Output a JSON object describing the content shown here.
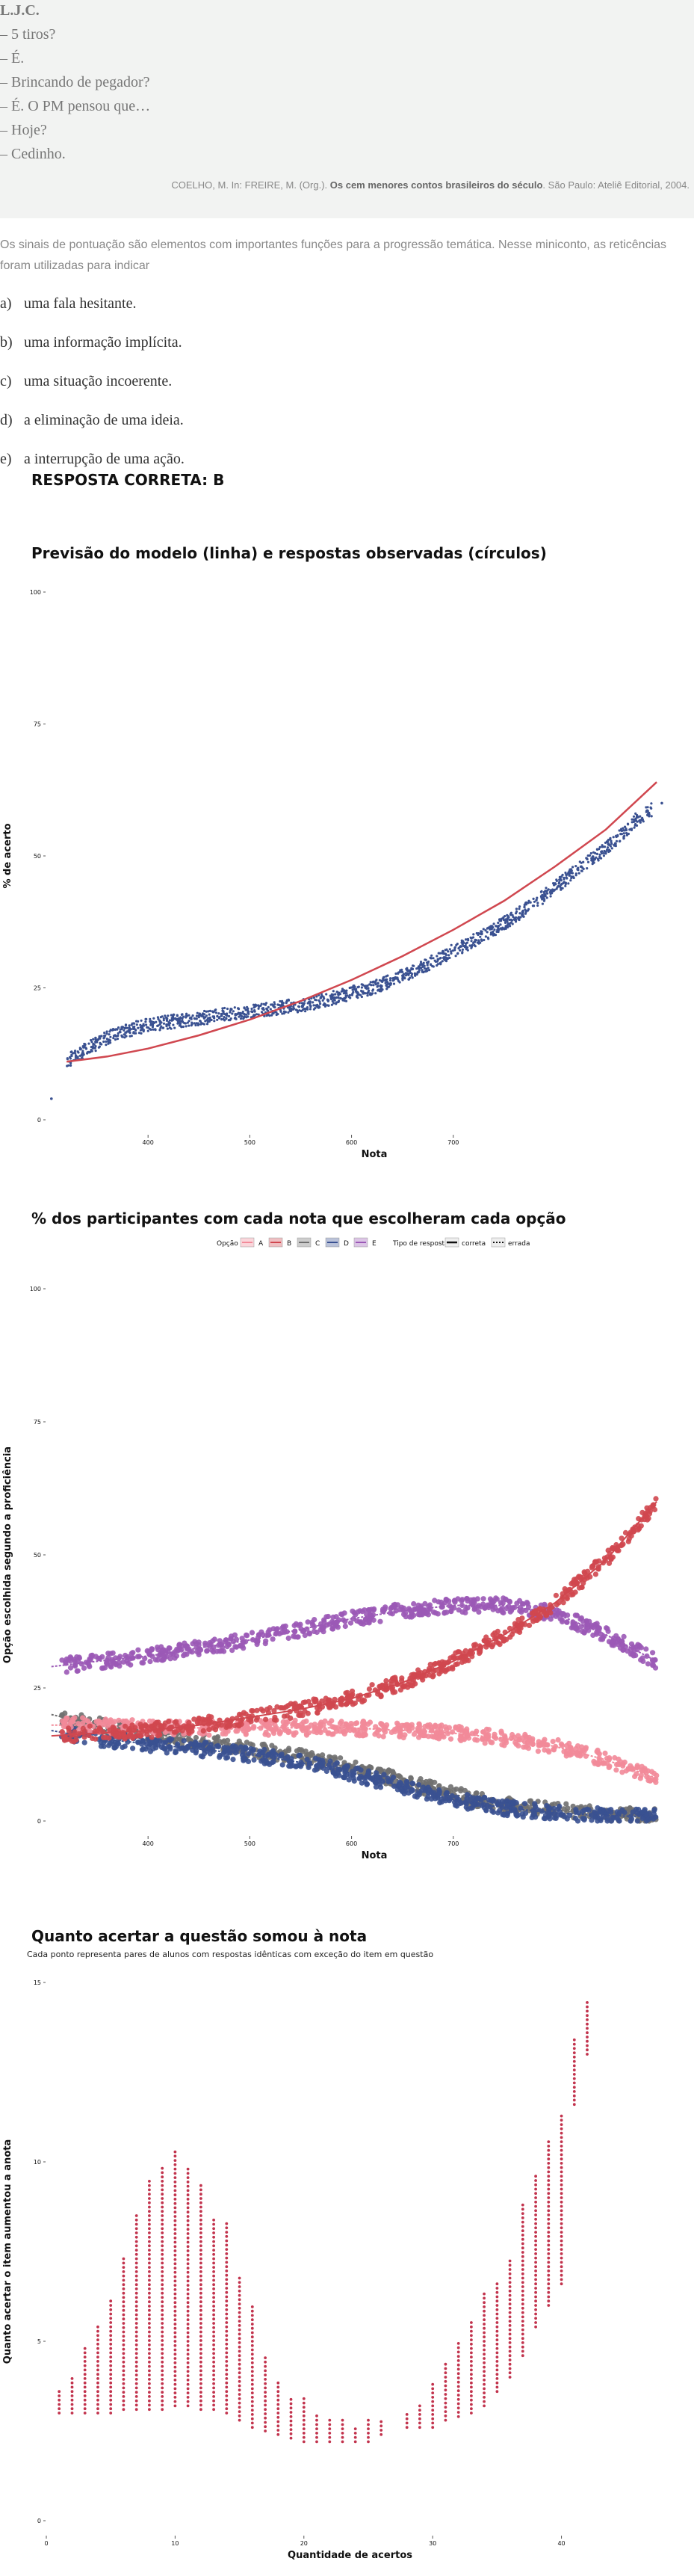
{
  "quote": {
    "lines": [
      "L.J.C.",
      "– 5 tiros?",
      "– É.",
      "– Brincando de pegador?",
      "– É. O PM pensou que…",
      "– Hoje?",
      "– Cedinho."
    ],
    "citation_prefix": "COELHO, M. In: FREIRE, M. (Org.).",
    "citation_book": "Os cem menores contos brasileiros do século",
    "citation_suffix": ". São Paulo: Ateliê Editorial, 2004."
  },
  "question": {
    "prompt": "Os sinais de pontuação são elementos com importantes funções para a progressão temática. Nesse miniconto, as reticências foram utilizadas para indicar",
    "options": [
      {
        "letter": "a)",
        "text": "uma fala hesitante."
      },
      {
        "letter": "b)",
        "text": "uma informação implícita."
      },
      {
        "letter": "c)",
        "text": "uma situação incoerente."
      },
      {
        "letter": "d)",
        "text": "a eliminação de uma ideia."
      },
      {
        "letter": "e)",
        "text": "a interrupção de uma ação."
      }
    ],
    "answer": "RESPOSTA CORRETA: B"
  },
  "chart_data": [
    {
      "type": "scatter",
      "title": "Previsão do modelo (linha) e respostas observadas (círculos)",
      "xlabel": "Nota",
      "ylabel": "% de acerto",
      "xlim": [
        300,
        930
      ],
      "ylim": [
        0,
        100
      ],
      "xticks": [
        400,
        500,
        600,
        700
      ],
      "yticks": [
        0,
        25,
        50,
        75,
        100
      ],
      "grid": false,
      "series": [
        {
          "mark": "points",
          "color": "#3a5191",
          "x": [
            305,
            320,
            340,
            360,
            380,
            400,
            420,
            440,
            460,
            480,
            500,
            520,
            540,
            560,
            580,
            600,
            620,
            640,
            660,
            680,
            700,
            720,
            740,
            760,
            780,
            800,
            820,
            840,
            860,
            880,
            905
          ],
          "y": [
            4,
            11,
            13.5,
            15.5,
            17,
            18,
            18.5,
            19,
            19.5,
            20,
            20.5,
            21,
            21.5,
            22,
            23,
            24,
            25,
            26.5,
            28,
            30,
            32,
            34,
            36,
            38.5,
            41,
            44,
            47,
            50,
            53,
            57,
            60
          ]
        },
        {
          "mark": "line",
          "color": "#d0474f",
          "x": [
            320,
            360,
            400,
            450,
            500,
            550,
            600,
            650,
            700,
            750,
            800,
            850,
            900
          ],
          "y": [
            11,
            12,
            13.5,
            16,
            19,
            22.5,
            26.5,
            31,
            36,
            41.5,
            48,
            55,
            64
          ]
        }
      ]
    },
    {
      "type": "line",
      "title": "% dos participantes com cada nota que escolheram cada opção",
      "xlabel": "Nota",
      "ylabel": "Opção escolhida segundo a proficiência",
      "legend_option_label": "Opção",
      "legend_type_label": "Tipo de resposta",
      "legend_type_entries": [
        "correta",
        "errada"
      ],
      "legend_placement": "top",
      "xlim": [
        300,
        930
      ],
      "ylim": [
        0,
        100
      ],
      "xticks": [
        400,
        500,
        600,
        700
      ],
      "yticks": [
        0,
        25,
        50,
        75,
        100
      ],
      "grid": false,
      "x": [
        305,
        350,
        400,
        450,
        500,
        550,
        600,
        650,
        700,
        750,
        800,
        850,
        900
      ],
      "series": [
        {
          "name": "A",
          "color": "#f28a99",
          "values": [
            18,
            18,
            17.5,
            17.5,
            17.5,
            17.5,
            17.5,
            17,
            16.5,
            15.5,
            14,
            11.5,
            8
          ]
        },
        {
          "name": "B",
          "color": "#d0474f",
          "values": [
            16,
            16.5,
            17,
            18,
            19.5,
            21,
            23,
            26,
            30,
            35,
            41,
            49,
            60
          ]
        },
        {
          "name": "C",
          "color": "#707070",
          "values": [
            20,
            18,
            16.5,
            15,
            13.5,
            12,
            10,
            7.5,
            5,
            3,
            2,
            1.2,
            1
          ]
        },
        {
          "name": "D",
          "color": "#3a5191",
          "values": [
            17,
            15.5,
            14.5,
            13.5,
            12.5,
            11,
            9,
            6.5,
            4,
            2.5,
            1.5,
            1,
            0.8
          ]
        },
        {
          "name": "E",
          "color": "#9b59b6",
          "values": [
            29,
            30,
            31,
            32.5,
            34,
            36,
            38,
            39.5,
            40.5,
            40.5,
            39,
            35,
            30
          ]
        }
      ]
    },
    {
      "type": "scatter",
      "title": "Quanto acertar a questão somou à nota",
      "subtitle": "Cada ponto representa pares de alunos com respostas idênticas com exceção do item em questão",
      "xlabel": "Quantidade de acertos",
      "ylabel": "Quanto acertar o item aumentou a anota",
      "xlim": [
        0,
        46
      ],
      "ylim": [
        0,
        15
      ],
      "xticks": [
        0,
        10,
        20,
        30,
        40
      ],
      "yticks": [
        0,
        5,
        10,
        15
      ],
      "grid": false,
      "color": "#c2334d",
      "columns": [
        {
          "x": 1,
          "ymin": 3.0,
          "ymax": 3.6
        },
        {
          "x": 2,
          "ymin": 3.0,
          "ymax": 4.0
        },
        {
          "x": 3,
          "ymin": 3.0,
          "ymax": 4.8
        },
        {
          "x": 4,
          "ymin": 3.0,
          "ymax": 5.4
        },
        {
          "x": 5,
          "ymin": 3.0,
          "ymax": 6.2
        },
        {
          "x": 6,
          "ymin": 3.1,
          "ymax": 7.4
        },
        {
          "x": 7,
          "ymin": 3.1,
          "ymax": 8.5
        },
        {
          "x": 8,
          "ymin": 3.1,
          "ymax": 9.5
        },
        {
          "x": 9,
          "ymin": 3.1,
          "ymax": 9.9
        },
        {
          "x": 10,
          "ymin": 3.2,
          "ymax": 10.3
        },
        {
          "x": 11,
          "ymin": 3.2,
          "ymax": 9.8
        },
        {
          "x": 12,
          "ymin": 3.1,
          "ymax": 9.4
        },
        {
          "x": 13,
          "ymin": 3.1,
          "ymax": 8.4
        },
        {
          "x": 14,
          "ymin": 3.0,
          "ymax": 8.3
        },
        {
          "x": 15,
          "ymin": 2.8,
          "ymax": 6.8
        },
        {
          "x": 16,
          "ymin": 2.6,
          "ymax": 6.0
        },
        {
          "x": 17,
          "ymin": 2.5,
          "ymax": 4.6
        },
        {
          "x": 18,
          "ymin": 2.4,
          "ymax": 3.9
        },
        {
          "x": 19,
          "ymin": 2.3,
          "ymax": 3.4
        },
        {
          "x": 20,
          "ymin": 2.2,
          "ymax": 3.4
        },
        {
          "x": 21,
          "ymin": 2.2,
          "ymax": 3.0
        },
        {
          "x": 22,
          "ymin": 2.2,
          "ymax": 2.8
        },
        {
          "x": 23,
          "ymin": 2.2,
          "ymax": 2.8
        },
        {
          "x": 24,
          "ymin": 2.2,
          "ymax": 2.6
        },
        {
          "x": 25,
          "ymin": 2.2,
          "ymax": 2.8
        },
        {
          "x": 26,
          "ymin": 2.4,
          "ymax": 2.8
        },
        {
          "x": 28,
          "ymin": 2.6,
          "ymax": 3.0
        },
        {
          "x": 29,
          "ymin": 2.6,
          "ymax": 3.3
        },
        {
          "x": 30,
          "ymin": 2.6,
          "ymax": 3.8
        },
        {
          "x": 31,
          "ymin": 2.8,
          "ymax": 4.4
        },
        {
          "x": 32,
          "ymin": 2.9,
          "ymax": 5.0
        },
        {
          "x": 33,
          "ymin": 3.0,
          "ymax": 5.6
        },
        {
          "x": 34,
          "ymin": 3.2,
          "ymax": 6.4
        },
        {
          "x": 35,
          "ymin": 3.6,
          "ymax": 6.6
        },
        {
          "x": 36,
          "ymin": 4.0,
          "ymax": 7.3
        },
        {
          "x": 37,
          "ymin": 4.6,
          "ymax": 8.9
        },
        {
          "x": 38,
          "ymin": 5.4,
          "ymax": 9.7
        },
        {
          "x": 39,
          "ymin": 6.0,
          "ymax": 10.6
        },
        {
          "x": 40,
          "ymin": 6.6,
          "ymax": 11.3
        },
        {
          "x": 41,
          "ymin": 11.6,
          "ymax": 13.4
        },
        {
          "x": 42,
          "ymin": 13.0,
          "ymax": 14.5
        }
      ]
    }
  ]
}
